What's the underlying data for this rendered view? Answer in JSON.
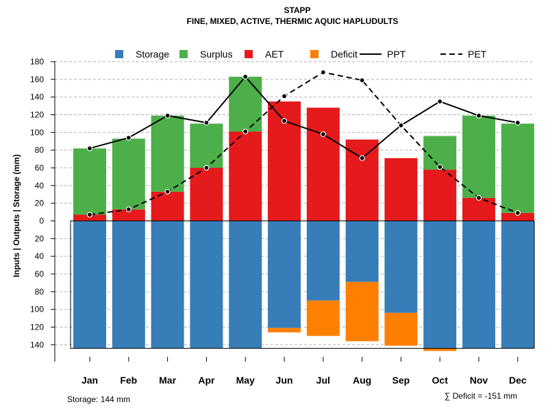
{
  "chart_data": {
    "type": "bar",
    "title": "STAPP",
    "subtitle": "FINE, MIXED, ACTIVE, THERMIC AQUIC HAPLUDULTS",
    "ylabel": "Inputs | Outputs | Storage    (mm)",
    "categories": [
      "Jan",
      "Feb",
      "Mar",
      "Apr",
      "May",
      "Jun",
      "Jul",
      "Aug",
      "Sep",
      "Oct",
      "Nov",
      "Dec"
    ],
    "ylim": [
      -144,
      180
    ],
    "y_ticks": [
      180,
      160,
      140,
      120,
      100,
      80,
      60,
      40,
      20,
      0,
      -20,
      -40,
      -60,
      -80,
      -100,
      -120,
      -140
    ],
    "y_tick_labels": [
      "180",
      "160",
      "140",
      "120",
      "100",
      "80",
      "60",
      "40",
      "20",
      "0",
      "20",
      "40",
      "60",
      "80",
      "100",
      "120",
      "140"
    ],
    "grid": true,
    "legend_position": "top",
    "legend": [
      {
        "key": "storage",
        "label": "Storage",
        "color": "#377EB8",
        "kind": "box"
      },
      {
        "key": "surplus",
        "label": "Surplus",
        "color": "#4DAF4A",
        "kind": "box"
      },
      {
        "key": "aet",
        "label": "AET",
        "color": "#E41A1C",
        "kind": "box"
      },
      {
        "key": "deficit",
        "label": "Deficit",
        "color": "#FF7F00",
        "kind": "box"
      },
      {
        "key": "ppt",
        "label": "PPT",
        "color": "#000000",
        "kind": "solid"
      },
      {
        "key": "pet",
        "label": "PET",
        "color": "#000000",
        "kind": "dashed"
      }
    ],
    "series": [
      {
        "name": "AET",
        "values": [
          7,
          13,
          33,
          60,
          101,
          135,
          128,
          92,
          71,
          58,
          26,
          9
        ]
      },
      {
        "name": "Surplus",
        "values": [
          75,
          80,
          86,
          50,
          62,
          0,
          0,
          0,
          0,
          38,
          93,
          101
        ]
      },
      {
        "name": "Storage",
        "values": [
          144,
          144,
          144,
          144,
          144,
          121,
          90,
          69,
          104,
          144,
          144,
          144
        ]
      },
      {
        "name": "Deficit",
        "values": [
          0,
          0,
          0,
          0,
          0,
          5,
          40,
          67,
          37,
          3,
          0,
          0
        ]
      },
      {
        "name": "PPT",
        "values": [
          82,
          94,
          119,
          111,
          163,
          113,
          98,
          71,
          108,
          135,
          119,
          111
        ]
      },
      {
        "name": "PET",
        "values": [
          7,
          13,
          33,
          60,
          101,
          141,
          168,
          159,
          108,
          61,
          26,
          9
        ]
      }
    ],
    "storage_note": "Storage: 144 mm",
    "deficit_note": "∑ Deficit = -151 mm"
  }
}
